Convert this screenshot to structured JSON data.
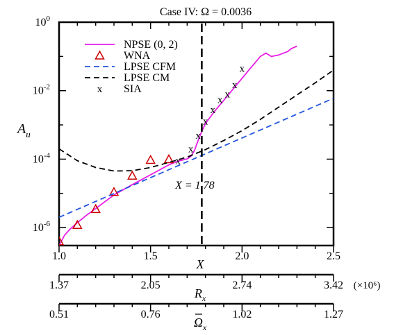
{
  "chart_data": {
    "type": "line",
    "title": "Case IV: Ω = 0.0036",
    "ylabel": "A",
    "ylabel_sub": "u",
    "yscale": "log",
    "ylim": [
      3e-07,
      1
    ],
    "y_ticks": [
      {
        "value": 1,
        "base": "10",
        "exp": "0"
      },
      {
        "value": 0.01,
        "base": "10",
        "exp": "-2"
      },
      {
        "value": 0.0001,
        "base": "10",
        "exp": "-4"
      },
      {
        "value": 1e-06,
        "base": "10",
        "exp": "-6"
      }
    ],
    "xlim": [
      1.0,
      2.5
    ],
    "x_axes": [
      {
        "label": "X",
        "label_sub": "",
        "label_bar": false,
        "ticks": [
          "1.0",
          "1.5",
          "2.0",
          "2.5"
        ],
        "tick_values": [
          1.0,
          1.5,
          2.0,
          2.5
        ]
      },
      {
        "label": "R",
        "label_sub": "x",
        "label_bar": false,
        "ticks": [
          "1.37",
          "2.05",
          "2.74",
          "3.42"
        ],
        "tick_values": [
          1.0,
          1.5,
          2.0,
          2.5
        ],
        "multiplier": "(×10⁶)"
      },
      {
        "label": "Ω",
        "label_sub": "x",
        "label_bar": true,
        "ticks": [
          "0.51",
          "0.76",
          "1.02",
          "1.27"
        ],
        "tick_values": [
          1.0,
          1.5,
          2.0,
          2.5
        ]
      }
    ],
    "annotation": {
      "text": "X = 1.78",
      "x": 1.78
    },
    "legend_position": "top-left",
    "series": [
      {
        "name": "NPSE (0, 2)",
        "style": "solid",
        "color": "#e61ee6",
        "x": [
          1.0,
          1.03,
          1.06,
          1.1,
          1.15,
          1.2,
          1.3,
          1.4,
          1.5,
          1.6,
          1.65,
          1.7,
          1.72,
          1.74,
          1.76,
          1.78,
          1.8,
          1.85,
          1.9,
          1.95,
          2.0,
          2.05,
          2.1,
          2.13,
          2.16,
          2.2,
          2.25,
          2.27,
          2.3
        ],
        "y": [
          3e-07,
          6e-07,
          9e-07,
          1.4e-06,
          2.3e-06,
          3.6e-06,
          9e-06,
          1.8e-05,
          3.5e-05,
          6.8e-05,
          8.7e-05,
          0.000102,
          0.00012,
          0.00018,
          0.00035,
          0.00065,
          0.0011,
          0.0025,
          0.0052,
          0.011,
          0.023,
          0.048,
          0.1,
          0.125,
          0.1,
          0.11,
          0.14,
          0.17,
          0.2
        ]
      },
      {
        "name": "WNA",
        "style": "marker",
        "marker": "triangle",
        "color": "#cc0000",
        "x": [
          1.0,
          1.1,
          1.2,
          1.3,
          1.4,
          1.5,
          1.6
        ],
        "y": [
          4e-07,
          1.2e-06,
          3.5e-06,
          1.1e-05,
          3.3e-05,
          9.5e-05,
          0.0001
        ]
      },
      {
        "name": "LPSE CFM",
        "style": "dashed",
        "color": "#2255dd",
        "x": [
          1.0,
          2.5
        ],
        "y": [
          2e-06,
          0.006
        ]
      },
      {
        "name": "LPSE CM",
        "style": "dashed",
        "color": "#000000",
        "x": [
          1.0,
          1.1,
          1.2,
          1.3,
          1.4,
          1.5,
          1.6,
          1.7,
          1.8,
          1.9,
          2.0,
          2.1,
          2.2,
          2.3,
          2.4,
          2.5
        ],
        "y": [
          0.0002,
          9e-05,
          5.7e-05,
          4.5e-05,
          4.6e-05,
          5.7e-05,
          8e-05,
          0.000115,
          0.00019,
          0.00035,
          0.00068,
          0.00145,
          0.0033,
          0.0075,
          0.017,
          0.04
        ]
      },
      {
        "name": "SIA",
        "style": "marker",
        "marker": "x",
        "color": "#000000",
        "x": [
          1.65,
          1.72,
          1.76,
          1.8,
          1.84,
          1.88,
          1.92,
          1.96,
          2.0
        ],
        "y": [
          9e-05,
          0.0002,
          0.0005,
          0.0013,
          0.0028,
          0.0055,
          0.008,
          0.015,
          0.045
        ]
      }
    ]
  }
}
